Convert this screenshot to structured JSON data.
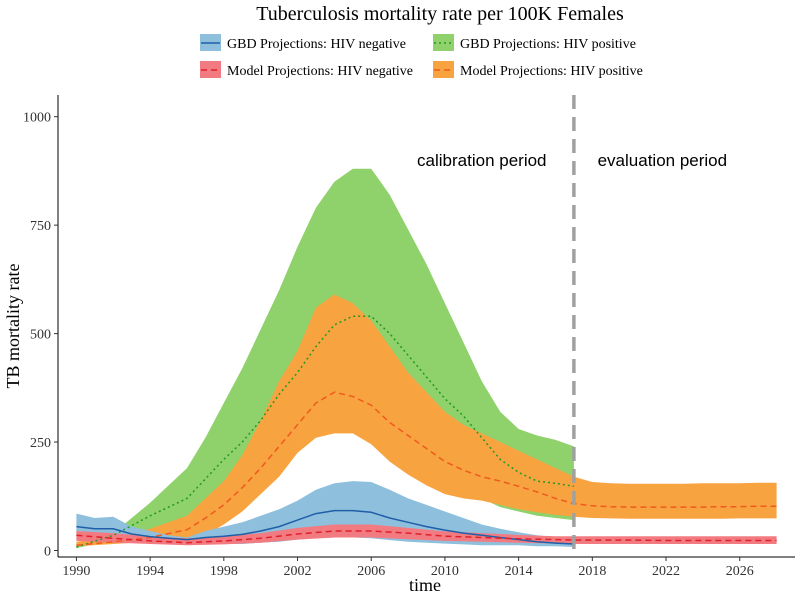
{
  "chart_data": {
    "type": "area",
    "title": "Tuberculosis mortality rate per 100K Females",
    "xlabel": "time",
    "ylabel": "TB mortality rate",
    "xlim": [
      1989,
      2029
    ],
    "ylim": [
      -15,
      1050
    ],
    "x_ticks": [
      1990,
      1994,
      1998,
      2002,
      2006,
      2010,
      2014,
      2018,
      2022,
      2026
    ],
    "y_ticks": [
      0,
      250,
      500,
      750,
      1000
    ],
    "grid": false,
    "legend_position": "top",
    "vline": {
      "x": 2017,
      "color": "#a0a0a0",
      "style": "dashed"
    },
    "annotations": [
      {
        "text": "calibration period",
        "x": 2012,
        "y": 900
      },
      {
        "text": "evaluation period",
        "x": 2021.8,
        "y": 900
      }
    ],
    "series": [
      {
        "name": "GBD Projections: HIV positive",
        "fill": "#8fd16a",
        "line_color": "#229922",
        "line_style": "dotted",
        "x": [
          1990,
          1992,
          1994,
          1996,
          1997,
          1998,
          1999,
          2000,
          2001,
          2002,
          2003,
          2004,
          2005,
          2006,
          2007,
          2008,
          2009,
          2010,
          2011,
          2012,
          2013,
          2014,
          2015,
          2016,
          2017
        ],
        "lower": [
          5,
          25,
          40,
          55,
          70,
          90,
          110,
          140,
          180,
          230,
          260,
          280,
          290,
          270,
          230,
          210,
          180,
          160,
          140,
          120,
          100,
          90,
          80,
          75,
          70
        ],
        "upper": [
          10,
          40,
          110,
          190,
          260,
          340,
          420,
          510,
          600,
          700,
          790,
          850,
          880,
          880,
          820,
          740,
          660,
          570,
          480,
          390,
          320,
          280,
          265,
          255,
          240
        ],
        "mid": [
          8,
          35,
          80,
          120,
          165,
          210,
          250,
          300,
          360,
          410,
          470,
          520,
          540,
          540,
          500,
          450,
          400,
          350,
          310,
          260,
          210,
          180,
          160,
          155,
          148
        ]
      },
      {
        "name": "Model Projections: HIV positive",
        "fill": "#f7a340",
        "line_color": "#f05a1e",
        "line_style": "dashed",
        "x": [
          1990,
          1992,
          1994,
          1996,
          1997,
          1998,
          1999,
          2000,
          2001,
          2002,
          2003,
          2004,
          2005,
          2006,
          2007,
          2008,
          2009,
          2010,
          2011,
          2012,
          2013,
          2014,
          2015,
          2016,
          2017,
          2018,
          2019,
          2020,
          2021,
          2022,
          2023,
          2024,
          2025,
          2026,
          2027,
          2028
        ],
        "lower": [
          10,
          15,
          20,
          20,
          35,
          60,
          90,
          130,
          170,
          225,
          260,
          270,
          270,
          245,
          205,
          175,
          150,
          130,
          120,
          115,
          105,
          95,
          88,
          82,
          78,
          75,
          74,
          73,
          73,
          73,
          73,
          73,
          73,
          74,
          74,
          74
        ],
        "upper": [
          20,
          30,
          50,
          80,
          120,
          160,
          220,
          300,
          390,
          460,
          560,
          590,
          570,
          530,
          470,
          410,
          365,
          320,
          290,
          270,
          250,
          230,
          210,
          190,
          170,
          158,
          155,
          154,
          154,
          154,
          154,
          155,
          155,
          155,
          156,
          156
        ],
        "mid": [
          12,
          20,
          30,
          48,
          75,
          105,
          145,
          190,
          240,
          290,
          340,
          365,
          355,
          335,
          295,
          265,
          235,
          205,
          185,
          170,
          160,
          148,
          135,
          120,
          108,
          103,
          101,
          100,
          100,
          100,
          100,
          100,
          101,
          101,
          102,
          102
        ]
      },
      {
        "name": "GBD Projections: HIV negative",
        "fill": "#8ec0de",
        "line_color": "#1f5fa8",
        "line_style": "solid",
        "x": [
          1990,
          1991,
          1992,
          1993,
          1994,
          1995,
          1996,
          1997,
          1998,
          1999,
          2000,
          2001,
          2002,
          2003,
          2004,
          2005,
          2006,
          2007,
          2008,
          2009,
          2010,
          2011,
          2012,
          2013,
          2014,
          2015,
          2016,
          2017
        ],
        "lower": [
          40,
          32,
          30,
          25,
          20,
          18,
          15,
          15,
          15,
          15,
          18,
          20,
          25,
          28,
          30,
          30,
          28,
          24,
          20,
          18,
          16,
          14,
          12,
          12,
          12,
          10,
          10,
          8
        ],
        "upper": [
          85,
          75,
          78,
          55,
          45,
          35,
          30,
          45,
          55,
          65,
          80,
          95,
          115,
          140,
          155,
          160,
          158,
          140,
          120,
          105,
          90,
          75,
          60,
          50,
          42,
          35,
          30,
          25
        ],
        "mid": [
          55,
          50,
          50,
          38,
          32,
          28,
          25,
          30,
          33,
          37,
          45,
          55,
          70,
          85,
          92,
          92,
          88,
          75,
          65,
          55,
          47,
          40,
          35,
          30,
          25,
          20,
          17,
          15
        ]
      },
      {
        "name": "Model Projections: HIV negative",
        "fill": "#f27b82",
        "line_color": "#e0202a",
        "line_style": "dashed",
        "x": [
          1990,
          1992,
          1994,
          1996,
          1998,
          2000,
          2002,
          2004,
          2006,
          2008,
          2010,
          2012,
          2014,
          2016,
          2017,
          2018,
          2020,
          2022,
          2024,
          2026,
          2028
        ],
        "lower": [
          22,
          18,
          15,
          12,
          14,
          18,
          25,
          30,
          30,
          26,
          22,
          20,
          18,
          16,
          15,
          15,
          15,
          15,
          15,
          15,
          15
        ],
        "upper": [
          45,
          40,
          32,
          28,
          32,
          40,
          52,
          60,
          60,
          52,
          44,
          40,
          36,
          33,
          33,
          33,
          33,
          33,
          33,
          33,
          33
        ],
        "mid": [
          35,
          28,
          22,
          18,
          22,
          28,
          38,
          45,
          45,
          40,
          33,
          30,
          27,
          25,
          24,
          24,
          24,
          23,
          23,
          23,
          23
        ]
      }
    ]
  },
  "legend": {
    "items": [
      {
        "label": "GBD Projections: HIV negative",
        "fill": "#8ec0de",
        "line_color": "#1f5fa8",
        "line_style": "solid"
      },
      {
        "label": "GBD Projections: HIV positive",
        "fill": "#8fd16a",
        "line_color": "#229922",
        "line_style": "dotted"
      },
      {
        "label": "Model Projections: HIV negative",
        "fill": "#f27b82",
        "line_color": "#e0202a",
        "line_style": "dashed"
      },
      {
        "label": "Model Projections: HIV positive",
        "fill": "#f7a340",
        "line_color": "#f05a1e",
        "line_style": "dashed"
      }
    ]
  }
}
